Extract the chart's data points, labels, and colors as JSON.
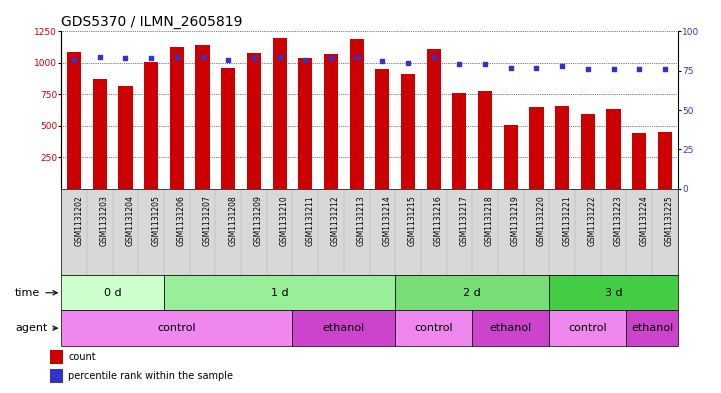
{
  "title": "GDS5370 / ILMN_2605819",
  "samples": [
    "GSM1131202",
    "GSM1131203",
    "GSM1131204",
    "GSM1131205",
    "GSM1131206",
    "GSM1131207",
    "GSM1131208",
    "GSM1131209",
    "GSM1131210",
    "GSM1131211",
    "GSM1131212",
    "GSM1131213",
    "GSM1131214",
    "GSM1131215",
    "GSM1131216",
    "GSM1131217",
    "GSM1131218",
    "GSM1131219",
    "GSM1131220",
    "GSM1131221",
    "GSM1131222",
    "GSM1131223",
    "GSM1131224",
    "GSM1131225"
  ],
  "counts": [
    1090,
    870,
    820,
    1010,
    1130,
    1140,
    960,
    1080,
    1200,
    1040,
    1070,
    1190,
    950,
    910,
    1110,
    760,
    775,
    510,
    650,
    660,
    590,
    630,
    440,
    450
  ],
  "percentiles": [
    82,
    84,
    83,
    83,
    84,
    84,
    82,
    83,
    84,
    82,
    83,
    84,
    81,
    80,
    84,
    79,
    79,
    77,
    77,
    78,
    76,
    76,
    76,
    76
  ],
  "ylim_left": [
    0,
    1250
  ],
  "ylim_right": [
    0,
    100
  ],
  "yticks_left": [
    250,
    500,
    750,
    1000,
    1250
  ],
  "yticks_right": [
    0,
    25,
    50,
    75,
    100
  ],
  "bar_color": "#cc0000",
  "dot_color": "#3333cc",
  "chart_bg": "#ffffff",
  "label_row_bg": "#d8d8d8",
  "time_groups": [
    {
      "label": "0 d",
      "start": 0,
      "end": 4,
      "color": "#ccffcc"
    },
    {
      "label": "1 d",
      "start": 4,
      "end": 13,
      "color": "#99ee99"
    },
    {
      "label": "2 d",
      "start": 13,
      "end": 19,
      "color": "#77dd77"
    },
    {
      "label": "3 d",
      "start": 19,
      "end": 24,
      "color": "#44cc44"
    }
  ],
  "agent_groups": [
    {
      "label": "control",
      "start": 0,
      "end": 9,
      "color": "#ee88ee"
    },
    {
      "label": "ethanol",
      "start": 9,
      "end": 13,
      "color": "#cc44cc"
    },
    {
      "label": "control",
      "start": 13,
      "end": 16,
      "color": "#ee88ee"
    },
    {
      "label": "ethanol",
      "start": 16,
      "end": 19,
      "color": "#cc44cc"
    },
    {
      "label": "control",
      "start": 19,
      "end": 22,
      "color": "#ee88ee"
    },
    {
      "label": "ethanol",
      "start": 22,
      "end": 24,
      "color": "#cc44cc"
    }
  ],
  "time_row_label": "time",
  "agent_row_label": "agent",
  "legend_count_label": "count",
  "legend_pct_label": "percentile rank within the sample",
  "grid_color": "#000000",
  "title_fontsize": 10,
  "tick_fontsize": 6.5,
  "label_fontsize": 8,
  "row_label_fontsize": 8,
  "bar_width": 0.55
}
